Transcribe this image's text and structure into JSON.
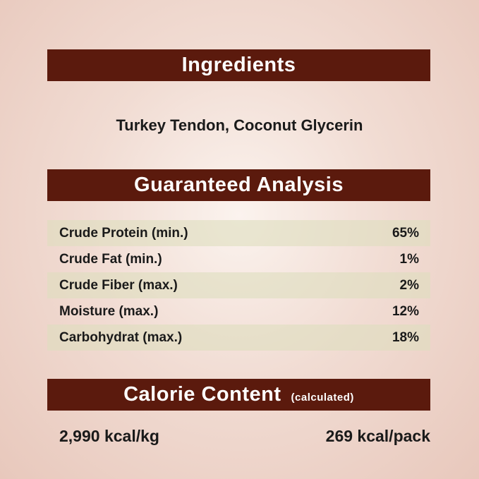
{
  "ingredients": {
    "title": "Ingredients",
    "text": "Turkey Tendon, Coconut Glycerin"
  },
  "analysis": {
    "title": "Guaranteed Analysis",
    "rows": [
      {
        "label": "Crude Protein (min.)",
        "value": "65%"
      },
      {
        "label": "Crude Fat (min.)",
        "value": "1%"
      },
      {
        "label": "Crude Fiber (max.)",
        "value": "2%"
      },
      {
        "label": "Moisture (max.)",
        "value": "12%"
      },
      {
        "label": "Carbohydrat (max.)",
        "value": "18%"
      }
    ]
  },
  "calorie": {
    "title": "Calorie Content",
    "note": "(calculated)",
    "per_kg": "2,990 kcal/kg",
    "per_pack": "269 kcal/pack"
  },
  "colors": {
    "header_bar": "#5b1a0d",
    "background": "#f1dcd3"
  }
}
